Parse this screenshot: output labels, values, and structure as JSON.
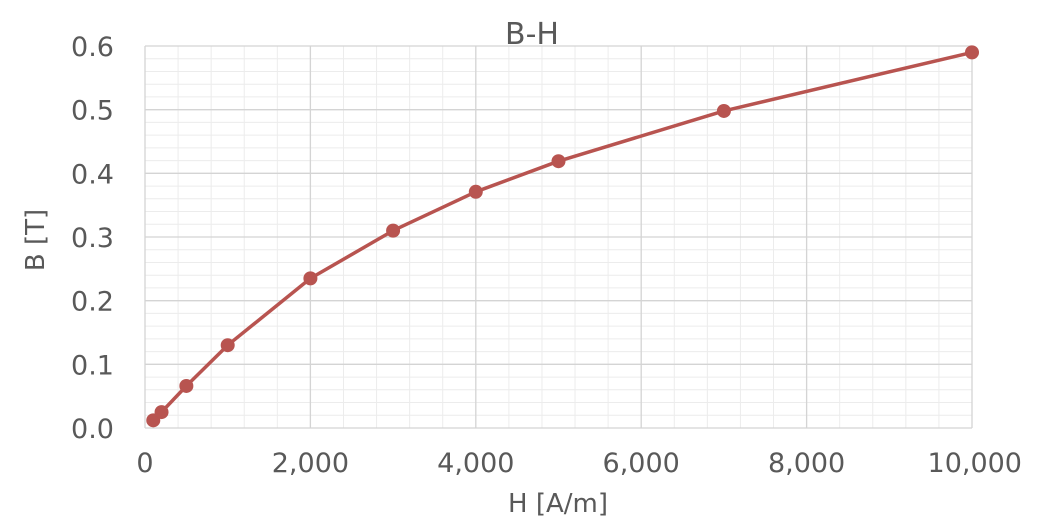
{
  "chart_data": {
    "type": "scatter",
    "mode": "lines+markers",
    "title": "B-H",
    "xlabel": "H [A/m]",
    "ylabel": "B [T]",
    "xlim": [
      0,
      10000
    ],
    "ylim": [
      0,
      0.6
    ],
    "x_major_step": 2000,
    "x_minor_step": 400,
    "y_major_step": 0.1,
    "y_minor_step": 0.02,
    "x_tick_labels": [
      "0",
      "2,000",
      "4,000",
      "6,000",
      "8,000",
      "10,000"
    ],
    "y_tick_labels": [
      "0.0",
      "0.1",
      "0.2",
      "0.3",
      "0.4",
      "0.5",
      "0.6"
    ],
    "grid": true,
    "minor_grid": true,
    "legend": "none",
    "series": [
      {
        "color": "#b85450",
        "x": [
          100,
          200,
          500,
          1000,
          2000,
          3000,
          4000,
          5000,
          7000,
          10000
        ],
        "y": [
          0.012,
          0.025,
          0.066,
          0.13,
          0.235,
          0.31,
          0.371,
          0.419,
          0.498,
          0.59
        ]
      }
    ]
  }
}
